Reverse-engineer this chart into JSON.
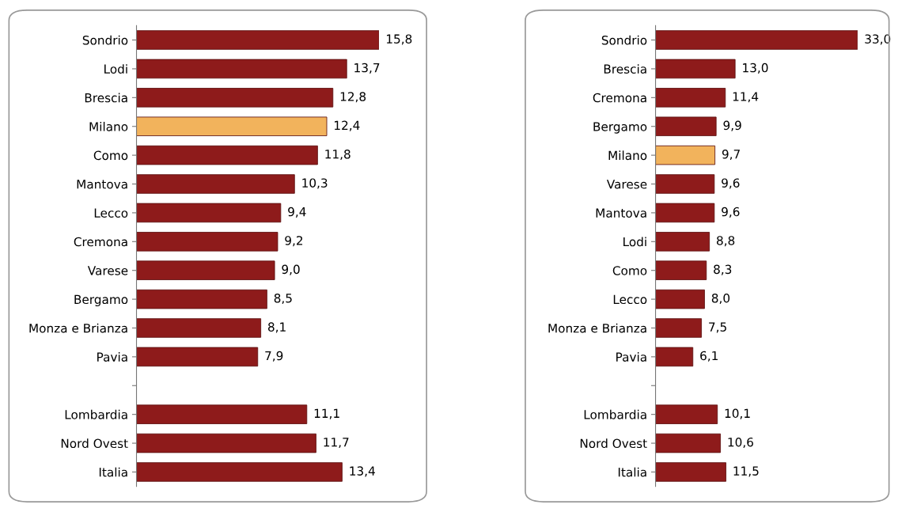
{
  "chart_data": [
    {
      "type": "bar",
      "orientation": "horizontal",
      "tick_labels": "y",
      "grid": false,
      "legend": false,
      "categories": [
        "Sondrio",
        "Lodi",
        "Brescia",
        "Milano",
        "Como",
        "Mantova",
        "Lecco",
        "Cremona",
        "Varese",
        "Bergamo",
        "Monza e Brianza",
        "Pavia",
        null,
        "Lombardia",
        "Nord Ovest",
        "Italia"
      ],
      "values": [
        15.8,
        13.7,
        12.8,
        12.4,
        11.8,
        10.3,
        9.4,
        9.2,
        9.0,
        8.5,
        8.1,
        7.9,
        null,
        11.1,
        11.7,
        13.4
      ],
      "value_labels": [
        "15,8",
        "13,7",
        "12,8",
        "12,4",
        "11,8",
        "10,3",
        "9,4",
        "9,2",
        "9,0",
        "8,5",
        "8,1",
        "7,9",
        null,
        "11,1",
        "11,7",
        "13,4"
      ],
      "colors": [
        "#8e1b1b",
        "#8e1b1b",
        "#8e1b1b",
        "#f2b35c",
        "#8e1b1b",
        "#8e1b1b",
        "#8e1b1b",
        "#8e1b1b",
        "#8e1b1b",
        "#8e1b1b",
        "#8e1b1b",
        "#8e1b1b",
        "#8e1b1b",
        "#8e1b1b",
        "#8e1b1b",
        "#8e1b1b"
      ]
    },
    {
      "type": "bar",
      "orientation": "horizontal",
      "tick_labels": "y",
      "grid": false,
      "legend": false,
      "categories": [
        "Sondrio",
        "Brescia",
        "Cremona",
        "Bergamo",
        "Milano",
        "Varese",
        "Mantova",
        "Lodi",
        "Como",
        "Lecco",
        "Monza e Brianza",
        "Pavia",
        null,
        "Lombardia",
        "Nord Ovest",
        "Italia"
      ],
      "values": [
        33.0,
        13.0,
        11.4,
        9.9,
        9.7,
        9.6,
        9.6,
        8.8,
        8.3,
        8.0,
        7.5,
        6.1,
        null,
        10.1,
        10.6,
        11.5
      ],
      "value_labels": [
        "33,0",
        "13,0",
        "11,4",
        "9,9",
        "9,7",
        "9,6",
        "9,6",
        "8,8",
        "8,3",
        "8,0",
        "7,5",
        "6,1",
        null,
        "10,1",
        "10,6",
        "11,5"
      ],
      "colors": [
        "#8e1b1b",
        "#8e1b1b",
        "#8e1b1b",
        "#8e1b1b",
        "#f2b35c",
        "#8e1b1b",
        "#8e1b1b",
        "#8e1b1b",
        "#8e1b1b",
        "#8e1b1b",
        "#8e1b1b",
        "#8e1b1b",
        "#8e1b1b",
        "#8e1b1b",
        "#8e1b1b",
        "#8e1b1b"
      ]
    }
  ]
}
